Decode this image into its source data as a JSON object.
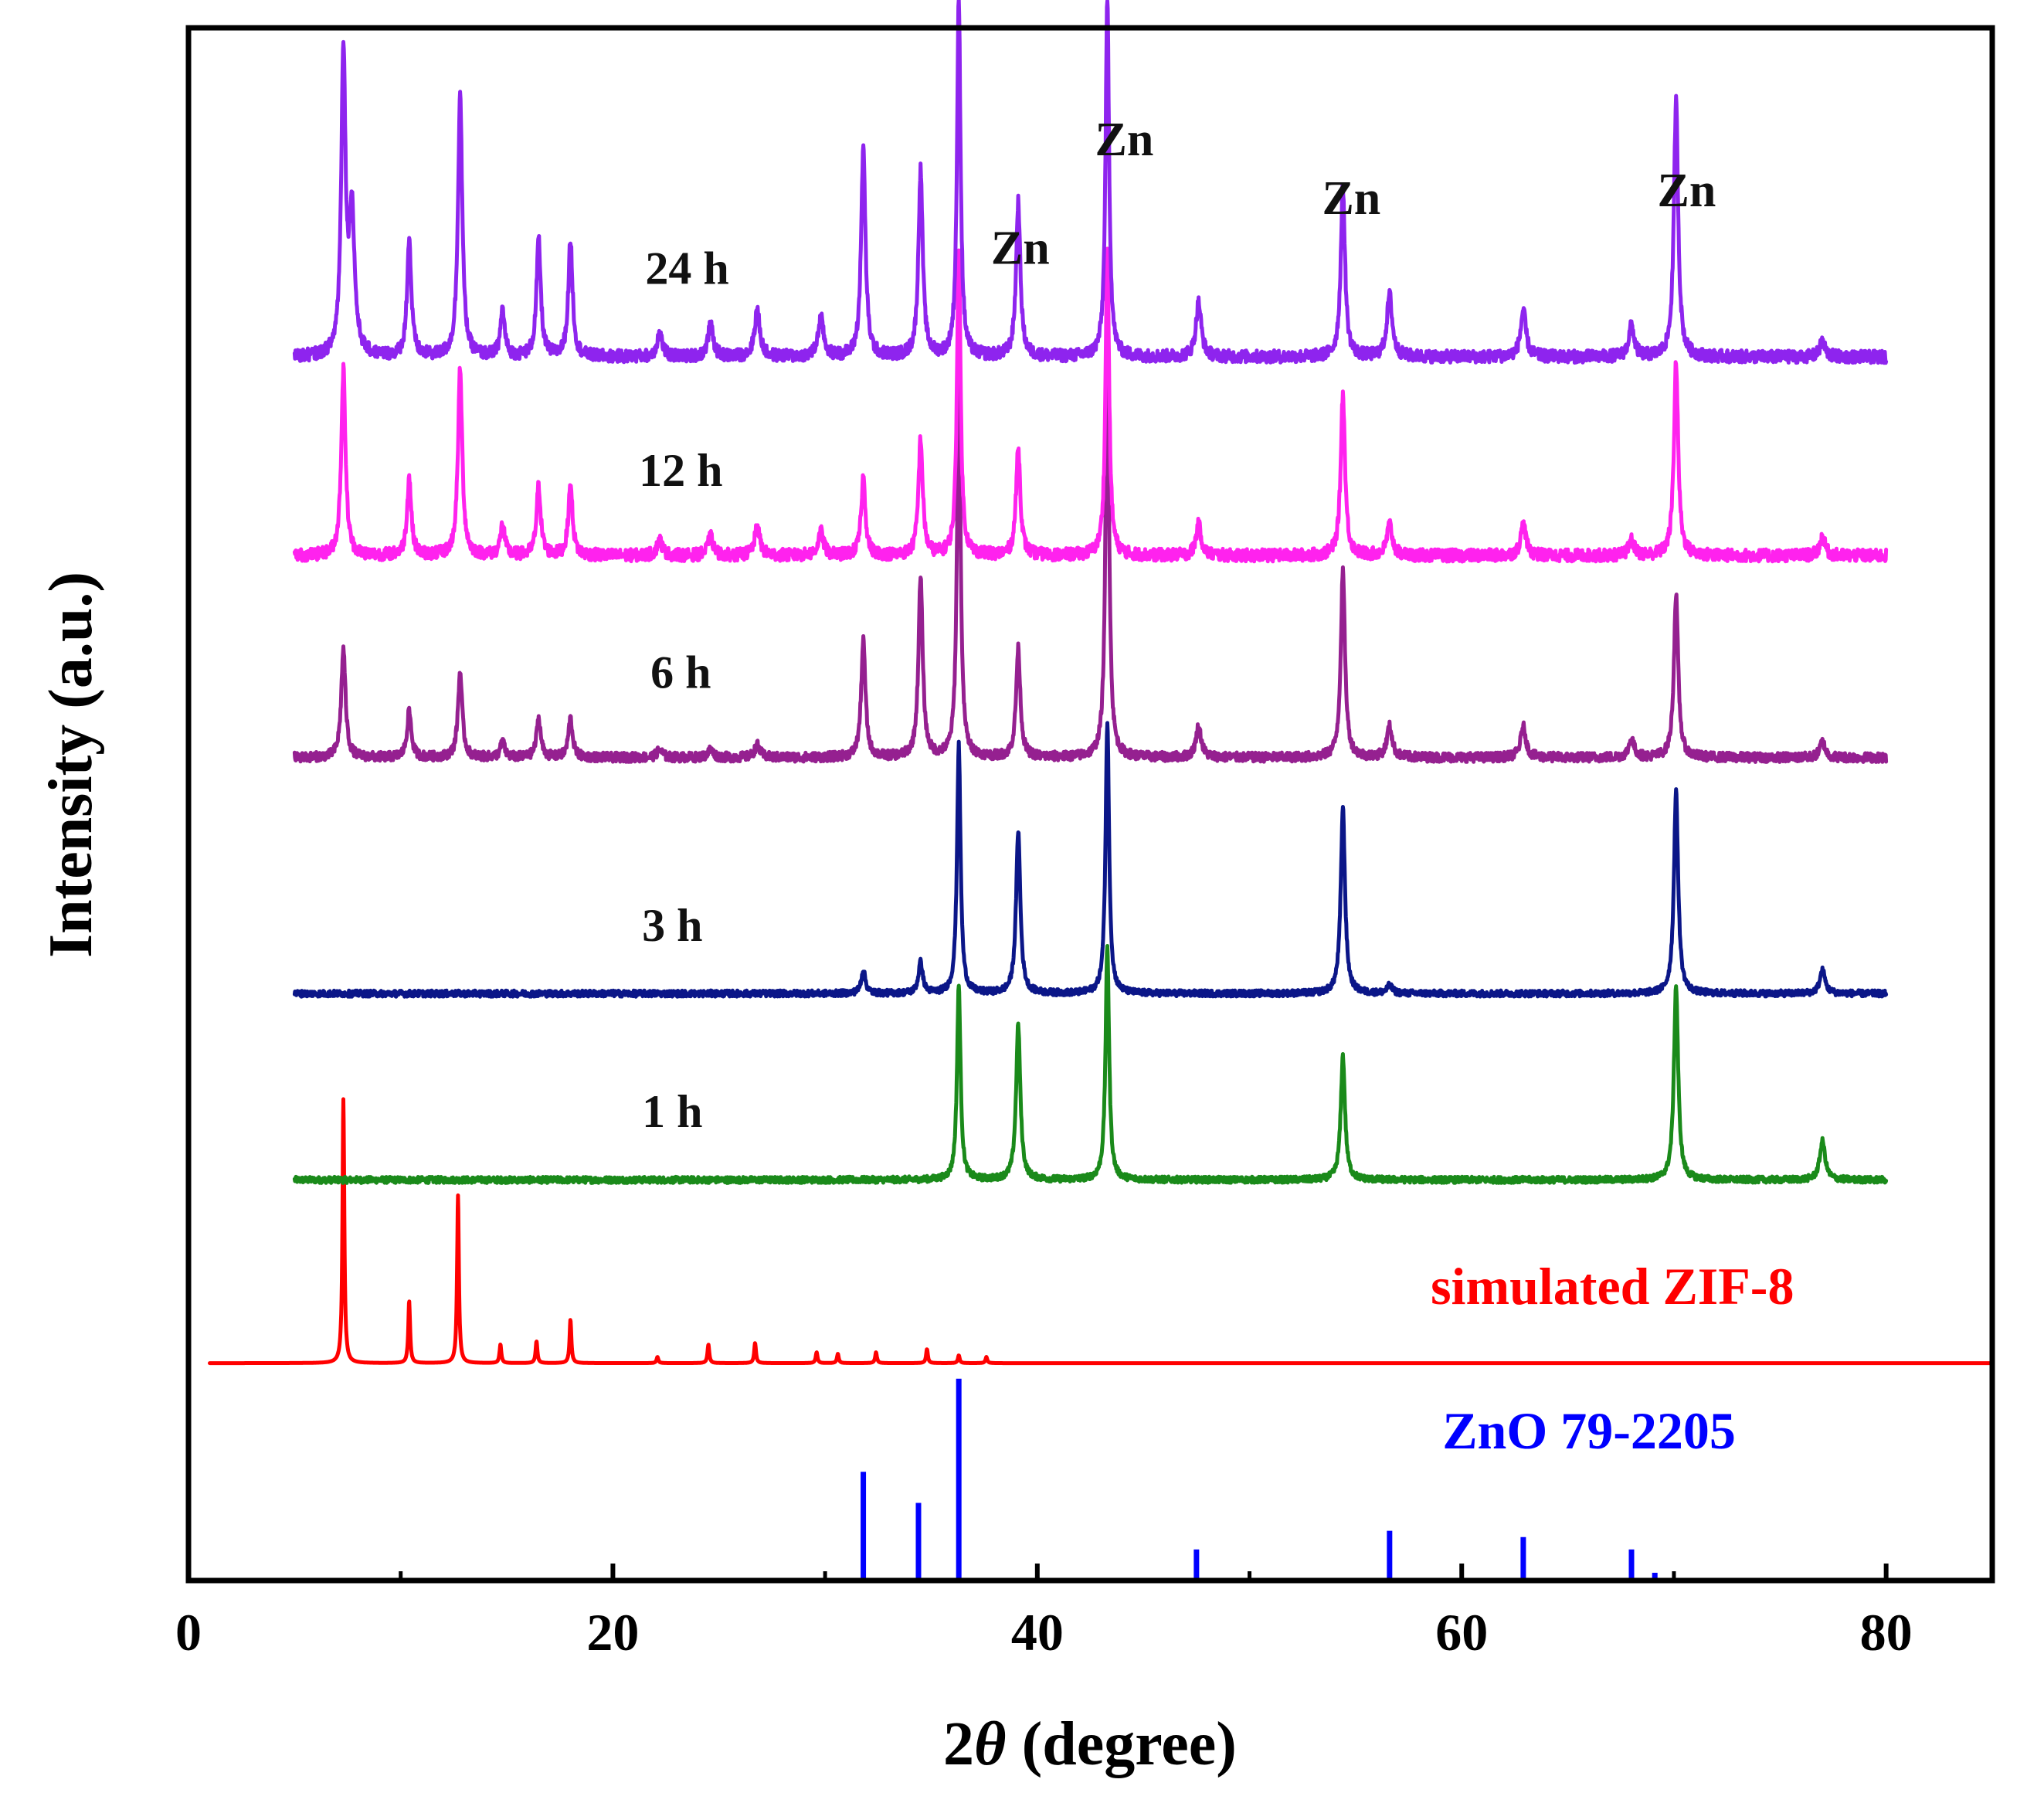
{
  "chart_data": {
    "type": "line",
    "title": "",
    "xlabel_prefix": "2",
    "xlabel_symbol": "θ",
    "xlabel_suffix": " (degree)",
    "ylabel": "Intensity (a.u.)",
    "xlim": [
      0,
      85
    ],
    "ylim": [
      0,
      1
    ],
    "y_ticks_shown": false,
    "x_ticks": [
      0,
      20,
      40,
      60,
      80
    ],
    "x_tick_labels": [
      "0",
      "20",
      "40",
      "60",
      "80"
    ],
    "series": [
      {
        "name": "24 h",
        "color": "#8e24ee",
        "x_range": [
          5,
          80
        ],
        "baseline": 0.788,
        "noise": 0.004,
        "peaks": [
          [
            7.3,
            0.195,
            0.12
          ],
          [
            7.7,
            0.09,
            0.15
          ],
          [
            10.4,
            0.075,
            0.12
          ],
          [
            12.8,
            0.17,
            0.12
          ],
          [
            14.8,
            0.03,
            0.12
          ],
          [
            16.5,
            0.075,
            0.12
          ],
          [
            18.0,
            0.075,
            0.12
          ],
          [
            22.2,
            0.015,
            0.15
          ],
          [
            24.6,
            0.02,
            0.15
          ],
          [
            26.8,
            0.03,
            0.15
          ],
          [
            29.8,
            0.025,
            0.15
          ],
          [
            31.8,
            0.135,
            0.12
          ],
          [
            34.5,
            0.12,
            0.12
          ],
          [
            36.3,
            0.23,
            0.1
          ],
          [
            39.1,
            0.1,
            0.12
          ],
          [
            43.3,
            0.23,
            0.1
          ],
          [
            47.6,
            0.035,
            0.15
          ],
          [
            54.4,
            0.11,
            0.12
          ],
          [
            56.6,
            0.04,
            0.15
          ],
          [
            62.9,
            0.03,
            0.15
          ],
          [
            68.0,
            0.02,
            0.15
          ],
          [
            70.1,
            0.165,
            0.12
          ],
          [
            77.0,
            0.01,
            0.15
          ]
        ]
      },
      {
        "name": "12 h",
        "color": "#ff22ee",
        "x_range": [
          5,
          80
        ],
        "baseline": 0.66,
        "noise": 0.004,
        "peaks": [
          [
            7.3,
            0.12,
            0.12
          ],
          [
            10.4,
            0.05,
            0.12
          ],
          [
            12.8,
            0.12,
            0.12
          ],
          [
            14.8,
            0.02,
            0.12
          ],
          [
            16.5,
            0.045,
            0.12
          ],
          [
            18.0,
            0.045,
            0.12
          ],
          [
            22.2,
            0.01,
            0.15
          ],
          [
            24.6,
            0.012,
            0.15
          ],
          [
            26.8,
            0.018,
            0.15
          ],
          [
            29.8,
            0.015,
            0.15
          ],
          [
            31.8,
            0.05,
            0.12
          ],
          [
            34.5,
            0.075,
            0.12
          ],
          [
            36.3,
            0.2,
            0.1
          ],
          [
            39.1,
            0.07,
            0.12
          ],
          [
            43.3,
            0.2,
            0.1
          ],
          [
            47.6,
            0.02,
            0.15
          ],
          [
            54.4,
            0.105,
            0.12
          ],
          [
            56.6,
            0.02,
            0.15
          ],
          [
            62.9,
            0.02,
            0.15
          ],
          [
            68.0,
            0.01,
            0.15
          ],
          [
            70.1,
            0.125,
            0.12
          ],
          [
            77.0,
            0.012,
            0.15
          ]
        ]
      },
      {
        "name": "6 h",
        "color": "#952090",
        "x_range": [
          5,
          80
        ],
        "baseline": 0.53,
        "noise": 0.003,
        "peaks": [
          [
            7.3,
            0.07,
            0.12
          ],
          [
            10.4,
            0.03,
            0.12
          ],
          [
            12.8,
            0.055,
            0.12
          ],
          [
            14.8,
            0.01,
            0.12
          ],
          [
            16.5,
            0.025,
            0.12
          ],
          [
            18.0,
            0.025,
            0.12
          ],
          [
            22.2,
            0.005,
            0.15
          ],
          [
            24.6,
            0.005,
            0.15
          ],
          [
            26.8,
            0.008,
            0.15
          ],
          [
            31.8,
            0.075,
            0.12
          ],
          [
            34.5,
            0.115,
            0.12
          ],
          [
            36.3,
            0.245,
            0.1
          ],
          [
            39.1,
            0.07,
            0.12
          ],
          [
            43.3,
            0.27,
            0.1
          ],
          [
            47.6,
            0.02,
            0.15
          ],
          [
            54.4,
            0.12,
            0.12
          ],
          [
            56.6,
            0.02,
            0.15
          ],
          [
            62.9,
            0.02,
            0.15
          ],
          [
            68.0,
            0.012,
            0.15
          ],
          [
            70.1,
            0.105,
            0.12
          ],
          [
            77.0,
            0.01,
            0.15
          ]
        ]
      },
      {
        "name": "3 h",
        "color": "#0b1688",
        "x_range": [
          5,
          80
        ],
        "baseline": 0.378,
        "noise": 0.002,
        "peaks": [
          [
            31.8,
            0.015,
            0.12
          ],
          [
            34.5,
            0.02,
            0.12
          ],
          [
            36.3,
            0.16,
            0.1
          ],
          [
            39.1,
            0.105,
            0.12
          ],
          [
            43.3,
            0.175,
            0.1
          ],
          [
            54.4,
            0.12,
            0.12
          ],
          [
            56.6,
            0.005,
            0.15
          ],
          [
            70.1,
            0.13,
            0.12
          ],
          [
            77.0,
            0.015,
            0.15
          ]
        ]
      },
      {
        "name": "1 h",
        "color": "#1a8a1a",
        "x_range": [
          5,
          80
        ],
        "baseline": 0.258,
        "noise": 0.002,
        "peaks": [
          [
            36.3,
            0.125,
            0.1
          ],
          [
            39.1,
            0.1,
            0.12
          ],
          [
            43.3,
            0.15,
            0.1
          ],
          [
            54.4,
            0.08,
            0.12
          ],
          [
            70.1,
            0.125,
            0.12
          ],
          [
            77.0,
            0.025,
            0.15
          ]
        ]
      },
      {
        "name": "simulated ZIF-8",
        "color": "#ff0000",
        "x_range": [
          1,
          85
        ],
        "baseline": 0.14,
        "noise": 0,
        "peaks": [
          [
            7.3,
            0.17,
            0.05
          ],
          [
            10.4,
            0.04,
            0.05
          ],
          [
            12.7,
            0.108,
            0.05
          ],
          [
            14.7,
            0.012,
            0.05
          ],
          [
            16.4,
            0.014,
            0.05
          ],
          [
            18.0,
            0.028,
            0.05
          ],
          [
            22.1,
            0.004,
            0.05
          ],
          [
            24.5,
            0.012,
            0.05
          ],
          [
            26.7,
            0.013,
            0.05
          ],
          [
            29.6,
            0.007,
            0.05
          ],
          [
            30.6,
            0.006,
            0.05
          ],
          [
            32.4,
            0.007,
            0.05
          ],
          [
            34.8,
            0.009,
            0.05
          ],
          [
            36.3,
            0.005,
            0.05
          ],
          [
            37.6,
            0.004,
            0.05
          ]
        ]
      }
    ],
    "reference": {
      "name": "ZnO 79-2205",
      "color": "#0000ff",
      "baseline": 0.0,
      "sticks": [
        [
          31.8,
          0.07
        ],
        [
          34.4,
          0.05
        ],
        [
          36.3,
          0.13
        ],
        [
          47.5,
          0.02
        ],
        [
          56.6,
          0.032
        ],
        [
          62.9,
          0.028
        ],
        [
          68.0,
          0.02
        ],
        [
          69.1,
          0.005
        ]
      ]
    },
    "series_label_positions": [
      {
        "name": "24 h",
        "x": 23.5,
        "y": 0.835
      },
      {
        "name": "12 h",
        "x": 23.2,
        "y": 0.705
      },
      {
        "name": "6 h",
        "x": 23.2,
        "y": 0.575
      },
      {
        "name": "3 h",
        "x": 22.8,
        "y": 0.412
      },
      {
        "name": "1 h",
        "x": 22.8,
        "y": 0.292
      }
    ],
    "annotations": [
      {
        "text": "Zn",
        "x": 39.2,
        "y": 0.848
      },
      {
        "text": "Zn",
        "x": 44.1,
        "y": 0.918
      },
      {
        "text": "Zn",
        "x": 54.8,
        "y": 0.88
      },
      {
        "text": "Zn",
        "x": 70.6,
        "y": 0.885
      }
    ],
    "reference_label_positions": [
      {
        "name": "simulated ZIF-8",
        "x": 67.1,
        "y": 0.178
      },
      {
        "name": "ZnO 79-2205",
        "x": 66.0,
        "y": 0.085
      }
    ]
  }
}
